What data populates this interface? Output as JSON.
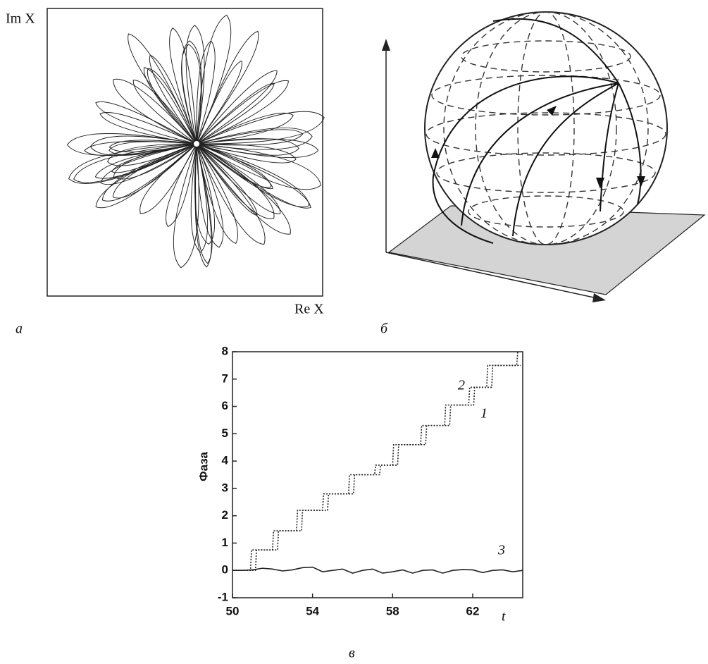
{
  "figure": {
    "panel_a": {
      "label": "a",
      "x_label": "Re X",
      "y_label": "Im X"
    },
    "panel_b": {
      "label": "б"
    },
    "panel_c": {
      "label": "в"
    }
  },
  "chart_data": {
    "type": "line",
    "y_label": "Фаза",
    "x_label": "t",
    "xlim": [
      50,
      64.5
    ],
    "ylim": [
      -1,
      8
    ],
    "xticks": [
      50,
      54,
      58,
      62
    ],
    "yticks": [
      -1,
      0,
      1,
      2,
      3,
      4,
      5,
      6,
      7,
      8
    ],
    "series": [
      {
        "name": "1",
        "color": "#222",
        "dashed": true,
        "x": [
          50,
          51.15,
          51.2,
          52.25,
          52.3,
          53.45,
          53.5,
          54.75,
          54.8,
          56.05,
          56.1,
          57.35,
          57.4,
          58.25,
          58.3,
          59.65,
          59.7,
          60.85,
          60.9,
          62.05,
          62.1,
          62.95,
          63,
          64.4
        ],
        "values": [
          0,
          0,
          0.75,
          0.75,
          1.45,
          1.45,
          2.2,
          2.2,
          2.8,
          2.8,
          3.5,
          3.5,
          3.85,
          3.85,
          4.6,
          4.6,
          5.3,
          5.3,
          6.05,
          6.05,
          6.7,
          6.7,
          7.5,
          7.5
        ]
      },
      {
        "name": "2",
        "color": "#222",
        "dashed": true,
        "x": [
          50,
          50.9,
          50.95,
          52.0,
          52.05,
          53.2,
          53.25,
          54.5,
          54.55,
          55.8,
          55.85,
          57.1,
          57.15,
          58.0,
          58.05,
          59.4,
          59.45,
          60.6,
          60.65,
          61.8,
          61.85,
          62.7,
          62.75,
          64.2,
          64.25
        ],
        "values": [
          0,
          0,
          0.75,
          0.75,
          1.45,
          1.45,
          2.2,
          2.2,
          2.8,
          2.8,
          3.5,
          3.5,
          3.85,
          3.85,
          4.6,
          4.6,
          5.3,
          5.3,
          6.05,
          6.05,
          6.7,
          6.7,
          7.5,
          7.5,
          8.0
        ]
      },
      {
        "name": "3",
        "color": "#222",
        "dashed": false,
        "x": [
          50,
          50.5,
          51,
          51.5,
          52,
          52.5,
          53,
          53.5,
          54,
          54.5,
          55,
          55.5,
          56,
          56.5,
          57,
          57.5,
          58,
          58.5,
          59,
          59.5,
          60,
          60.5,
          61,
          61.5,
          62,
          62.5,
          63,
          63.5,
          64,
          64.5
        ],
        "values": [
          0,
          0,
          0.02,
          0.08,
          0.05,
          -0.02,
          0.02,
          0.1,
          0.12,
          -0.05,
          0,
          0.05,
          -0.1,
          0,
          0.05,
          -0.1,
          -0.05,
          0.02,
          -0.1,
          0,
          0.02,
          -0.1,
          0,
          0.03,
          0.02,
          -0.08,
          0,
          0.02,
          -0.05,
          0
        ]
      }
    ]
  }
}
